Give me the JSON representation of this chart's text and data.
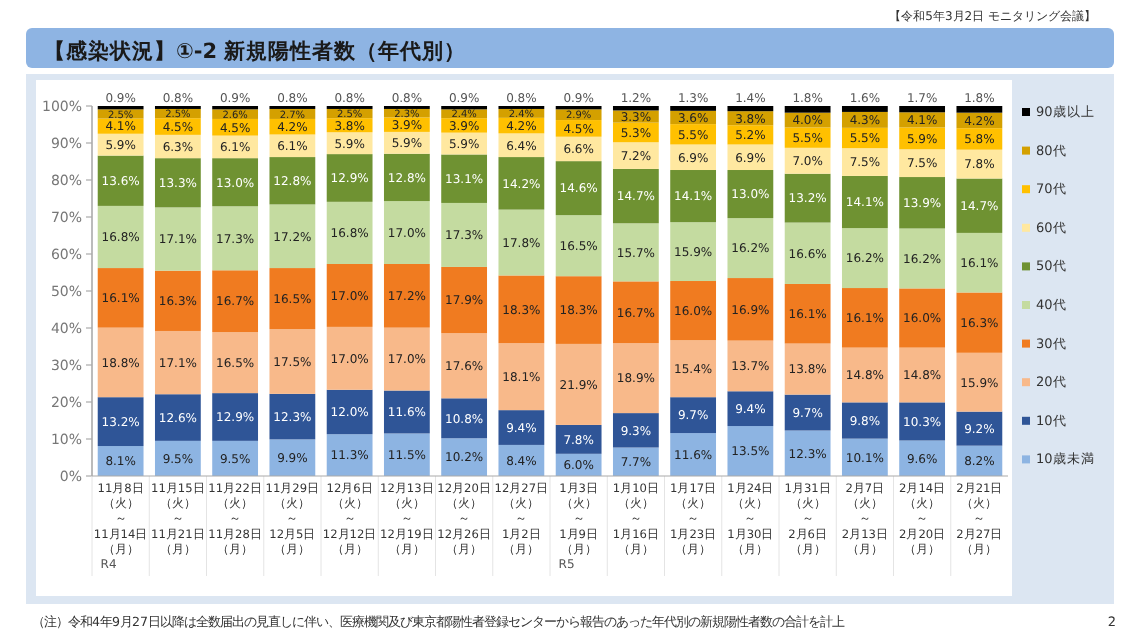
{
  "chart_data": {
    "type": "bar",
    "stacked": true,
    "title": "【感染状況】①-2 新規陽性者数（年代別）",
    "subtitle": "【令和5年3月2日 モニタリング会議】",
    "categories": [
      "11月8日（火）～11月14日（月）",
      "11月15日（火）～11月21日（月）",
      "11月22日（火）～11月28日（月）",
      "11月29日（火）～12月5日（月）",
      "12月6日（火）～12月12日（月）",
      "12月13日（火）～12月19日（月）",
      "12月20日（火）～12月26日（月）",
      "12月27日（火）～1月2日（月）",
      "1月3日（火）～1月9日（月）",
      "1月10日（火）～1月16日（月）",
      "1月17日（火）～1月23日（月）",
      "1月24日（火）～1月30日（月）",
      "1月31日（火）～2月6日（月）",
      "2月7日（火）～2月13日（月）",
      "2月14日（火）～2月20日（月）",
      "2月21日（火）～2月27日（月）"
    ],
    "series": [
      {
        "name": "10歳未満",
        "color": "#8db4e2",
        "values": [
          8.1,
          9.5,
          9.5,
          9.9,
          11.3,
          11.5,
          10.2,
          8.4,
          6.0,
          7.7,
          11.6,
          13.5,
          12.3,
          10.1,
          9.6,
          8.2
        ],
        "value_labels": [
          "8.1%",
          "9.5%",
          "9.5%",
          "9.9%",
          "11.3%",
          "11.5%",
          "10.2%",
          "8.4%",
          "6.0%",
          "7.7%",
          "11.6%",
          "13.5%",
          "12.3%",
          "10.1%",
          "9.6%",
          "8.2%"
        ]
      },
      {
        "name": "10代",
        "color": "#2f5597",
        "values": [
          13.2,
          12.6,
          12.9,
          12.3,
          12.0,
          11.6,
          10.8,
          9.4,
          7.8,
          9.3,
          9.7,
          9.4,
          9.7,
          9.8,
          10.3,
          9.2
        ],
        "value_labels": [
          "13.2%",
          "12.6%",
          "12.9%",
          "12.3%",
          "12.0%",
          "11.6%",
          "10.8%",
          "9.4%",
          "7.8%",
          "9.3%",
          "9.7%",
          "9.4%",
          "9.7%",
          "9.8%",
          "10.3%",
          "9.2%"
        ]
      },
      {
        "name": "20代",
        "color": "#f8b98a",
        "values": [
          18.8,
          17.1,
          16.5,
          17.5,
          17.0,
          17.0,
          17.6,
          18.1,
          21.9,
          18.9,
          15.4,
          13.7,
          13.8,
          14.8,
          14.8,
          15.9
        ],
        "value_labels": [
          "18.8%",
          "17.1%",
          "16.5%",
          "17.5%",
          "17.0%",
          "17.0%",
          "17.6%",
          "18.1%",
          "21.9%",
          "18.9%",
          "15.4%",
          "13.7%",
          "13.8%",
          "14.8%",
          "14.8%",
          "15.9%"
        ]
      },
      {
        "name": "30代",
        "color": "#f07b20",
        "values": [
          16.1,
          16.3,
          16.7,
          16.5,
          17.0,
          17.2,
          17.9,
          18.3,
          18.3,
          16.7,
          16.0,
          16.9,
          16.1,
          16.1,
          16.0,
          16.3
        ],
        "value_labels": [
          "16.1%",
          "16.3%",
          "16.7%",
          "16.5%",
          "17.0%",
          "17.2%",
          "17.9%",
          "18.3%",
          "18.3%",
          "16.7%",
          "16.0%",
          "16.9%",
          "16.1%",
          "16.1%",
          "16.0%",
          "16.3%"
        ]
      },
      {
        "name": "40代",
        "color": "#c4dba0",
        "values": [
          16.8,
          17.1,
          17.3,
          17.2,
          16.8,
          17.0,
          17.3,
          17.8,
          16.5,
          15.7,
          15.9,
          16.2,
          16.6,
          16.2,
          16.2,
          16.1
        ],
        "value_labels": [
          "16.8%",
          "17.1%",
          "17.3%",
          "17.2%",
          "16.8%",
          "17.0%",
          "17.3%",
          "17.8%",
          "16.5%",
          "15.7%",
          "15.9%",
          "16.2%",
          "16.6%",
          "16.2%",
          "16.2%",
          "16.1%"
        ]
      },
      {
        "name": "50代",
        "color": "#6f9232",
        "values": [
          13.6,
          13.3,
          13.0,
          12.8,
          12.9,
          12.8,
          13.1,
          14.2,
          14.6,
          14.7,
          14.1,
          13.0,
          13.2,
          14.1,
          13.9,
          14.7
        ],
        "value_labels": [
          "13.6%",
          "13.3%",
          "13.0%",
          "12.8%",
          "12.9%",
          "12.8%",
          "13.1%",
          "14.2%",
          "14.6%",
          "14.7%",
          "14.1%",
          "13.0%",
          "13.2%",
          "14.1%",
          "13.9%",
          "14.7%"
        ]
      },
      {
        "name": "60代",
        "color": "#ffe8a0",
        "values": [
          5.9,
          6.3,
          6.1,
          6.1,
          5.9,
          5.9,
          5.9,
          6.4,
          6.6,
          7.2,
          6.9,
          6.9,
          7.0,
          7.5,
          7.5,
          7.8
        ],
        "value_labels": [
          "5.9%",
          "6.3%",
          "6.1%",
          "6.1%",
          "5.9%",
          "5.9%",
          "5.9%",
          "6.4%",
          "6.6%",
          "7.2%",
          "6.9%",
          "6.9%",
          "7.0%",
          "7.5%",
          "7.5%",
          "7.8%"
        ]
      },
      {
        "name": "70代",
        "color": "#ffc000",
        "values": [
          4.1,
          4.5,
          4.5,
          4.2,
          3.8,
          3.9,
          3.9,
          4.2,
          4.5,
          5.3,
          5.5,
          5.2,
          5.5,
          5.5,
          5.9,
          5.8
        ],
        "value_labels": [
          "4.1%",
          "4.5%",
          "4.5%",
          "4.2%",
          "3.8%",
          "3.9%",
          "3.9%",
          "4.2%",
          "4.5%",
          "5.3%",
          "5.5%",
          "5.2%",
          "5.5%",
          "5.5%",
          "5.9%",
          "5.8%"
        ]
      },
      {
        "name": "80代",
        "color": "#d4a000",
        "values": [
          2.5,
          2.5,
          2.6,
          2.7,
          2.5,
          2.3,
          2.4,
          2.4,
          2.9,
          3.3,
          3.6,
          3.8,
          4.0,
          4.3,
          4.1,
          4.2
        ],
        "value_labels": [
          "2.5%",
          "2.5%",
          "2.6%",
          "2.7%",
          "2.5%",
          "2.3%",
          "2.4%",
          "2.4%",
          "2.9%",
          "3.3%",
          "3.6%",
          "3.8%",
          "4.0%",
          "4.3%",
          "4.1%",
          "4.2%"
        ]
      },
      {
        "name": "90歳以上",
        "color": "#000000",
        "values": [
          0.9,
          0.8,
          0.9,
          0.8,
          0.8,
          0.8,
          0.9,
          0.8,
          0.9,
          1.2,
          1.3,
          1.4,
          1.8,
          1.6,
          1.7,
          1.8
        ],
        "value_labels": [
          "0.9%",
          "0.8%",
          "0.9%",
          "0.8%",
          "0.8%",
          "0.8%",
          "0.9%",
          "0.8%",
          "0.9%",
          "1.2%",
          "1.3%",
          "1.4%",
          "1.8%",
          "1.6%",
          "1.7%",
          "1.8%"
        ]
      }
    ],
    "ylim": [
      0,
      100
    ],
    "yticks": [
      {
        "value": 0,
        "label": "0%"
      },
      {
        "value": 10,
        "label": "10%"
      },
      {
        "value": 20,
        "label": "20%"
      },
      {
        "value": 30,
        "label": "30%"
      },
      {
        "value": 40,
        "label": "40%"
      },
      {
        "value": 50,
        "label": "50%"
      },
      {
        "value": 60,
        "label": "60%"
      },
      {
        "value": 70,
        "label": "70%"
      },
      {
        "value": 80,
        "label": "80%"
      },
      {
        "value": 90,
        "label": "90%"
      },
      {
        "value": 100,
        "label": "100%"
      }
    ],
    "legend": "right",
    "annotations": [
      "R4",
      "R5",
      "（注）令和4年9月27日以降は全数届出の見直しに伴い、医療機関及び東京都陽性者登録センターから報告のあった年代別の新規陽性者数の合計を計上",
      "2"
    ]
  }
}
